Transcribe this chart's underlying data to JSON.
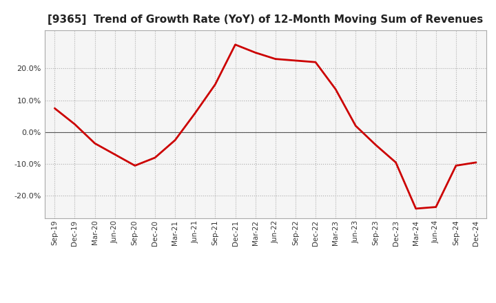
{
  "title": "[9365]  Trend of Growth Rate (YoY) of 12-Month Moving Sum of Revenues",
  "title_fontsize": 11,
  "line_color": "#cc0000",
  "background_color": "#ffffff",
  "plot_bg_color": "#f5f5f5",
  "grid_color": "#aaaaaa",
  "zero_line_color": "#555555",
  "x_labels": [
    "Sep-19",
    "Dec-19",
    "Mar-20",
    "Jun-20",
    "Sep-20",
    "Dec-20",
    "Mar-21",
    "Jun-21",
    "Sep-21",
    "Dec-21",
    "Mar-22",
    "Jun-22",
    "Sep-22",
    "Dec-22",
    "Mar-23",
    "Jun-23",
    "Sep-23",
    "Dec-23",
    "Mar-24",
    "Jun-24",
    "Sep-24",
    "Dec-24"
  ],
  "y_values": [
    7.5,
    2.5,
    -3.5,
    -7.0,
    -10.5,
    -8.0,
    -2.5,
    6.0,
    15.0,
    27.5,
    25.0,
    23.0,
    22.5,
    22.0,
    13.5,
    2.0,
    -4.0,
    -9.5,
    -24.0,
    -23.5,
    -10.5,
    -9.5
  ],
  "ylim": [
    -27,
    32
  ],
  "yticks": [
    -20,
    -10,
    0,
    10,
    20
  ],
  "line_width": 2.0
}
